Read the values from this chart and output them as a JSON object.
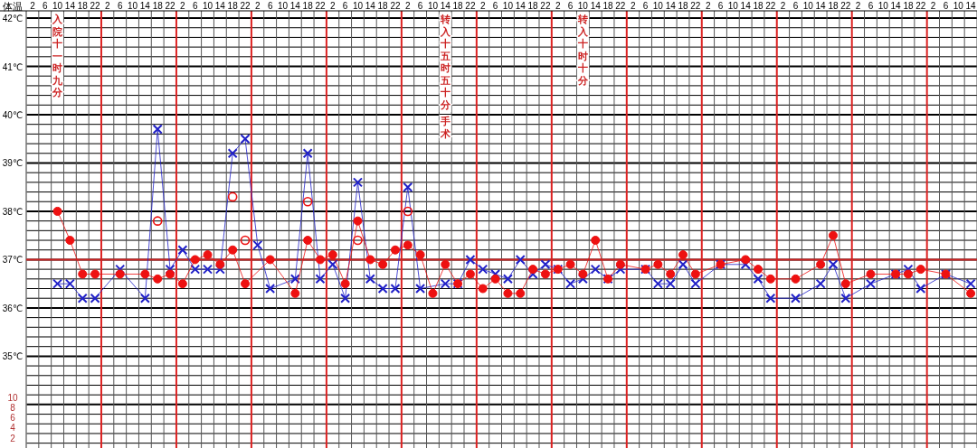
{
  "chart_data": {
    "type": "line",
    "title": "体温",
    "categories": [
      "2",
      "6",
      "10",
      "14",
      "18",
      "22",
      "2",
      "6",
      "10",
      "14",
      "18",
      "22",
      "2",
      "6",
      "10",
      "14",
      "18",
      "22",
      "2",
      "6",
      "10",
      "14",
      "18",
      "22",
      "2",
      "6",
      "10",
      "14",
      "18",
      "22",
      "2",
      "6",
      "10",
      "14",
      "18",
      "22",
      "2",
      "6",
      "10",
      "14",
      "18",
      "22",
      "2",
      "6",
      "10",
      "14",
      "18",
      "22",
      "2",
      "6",
      "10",
      "14",
      "18",
      "22",
      "2",
      "6",
      "10",
      "14",
      "18",
      "22",
      "2",
      "6",
      "10",
      "14",
      "18",
      "22",
      "2",
      "6",
      "10",
      "14",
      "18",
      "22",
      "2",
      "6",
      "10",
      "14"
    ],
    "series": [
      {
        "color": "#2020c8",
        "marker": "cross",
        "values": [
          null,
          null,
          36.5,
          36.5,
          36.2,
          36.2,
          null,
          36.8,
          null,
          36.2,
          39.7,
          36.8,
          37.2,
          36.8,
          36.8,
          36.8,
          39.2,
          39.5,
          37.3,
          36.4,
          null,
          36.6,
          39.2,
          36.6,
          36.9,
          36.2,
          38.6,
          36.6,
          36.4,
          36.4,
          38.5,
          36.4,
          null,
          36.5,
          36.5,
          37.0,
          36.8,
          36.7,
          36.6,
          37.0,
          36.7,
          36.9,
          36.8,
          36.5,
          36.6,
          36.8,
          36.6,
          36.8,
          null,
          36.8,
          36.5,
          36.5,
          36.9,
          36.5,
          null,
          36.9,
          null,
          36.9,
          36.6,
          36.2,
          null,
          36.2,
          null,
          36.5,
          36.9,
          36.2,
          null,
          36.5,
          null,
          36.7,
          36.8,
          36.4,
          null,
          36.7,
          null,
          36.5
        ]
      },
      {
        "color": "#ee1111",
        "marker": "circle",
        "values": [
          null,
          null,
          38.0,
          37.4,
          36.7,
          36.7,
          null,
          36.7,
          null,
          36.7,
          36.6,
          36.7,
          36.5,
          37.0,
          37.1,
          36.9,
          37.2,
          36.5,
          null,
          37.0,
          null,
          36.3,
          37.4,
          37.0,
          37.1,
          36.5,
          37.8,
          37.0,
          36.9,
          37.2,
          37.3,
          37.1,
          36.3,
          36.9,
          36.5,
          36.7,
          36.4,
          36.6,
          36.3,
          36.3,
          36.8,
          36.7,
          36.8,
          36.9,
          36.7,
          37.4,
          36.6,
          36.9,
          null,
          36.8,
          36.9,
          36.7,
          37.1,
          36.7,
          null,
          36.9,
          null,
          37.0,
          36.8,
          36.6,
          null,
          36.6,
          null,
          36.9,
          37.5,
          36.5,
          null,
          36.7,
          null,
          36.7,
          36.7,
          36.8,
          null,
          36.7,
          null,
          36.3
        ]
      },
      {
        "type": "scatter",
        "color": "#ee1111",
        "marker": "circle",
        "values": [
          null,
          null,
          null,
          null,
          null,
          null,
          null,
          null,
          null,
          null,
          37.8,
          null,
          null,
          null,
          null,
          null,
          38.3,
          37.4,
          null,
          null,
          null,
          null,
          38.2,
          null,
          null,
          null,
          37.4,
          null,
          null,
          null,
          38.0,
          null,
          null,
          null,
          null,
          null,
          null,
          null,
          null,
          null,
          null,
          null,
          null,
          null,
          null,
          null,
          null,
          null,
          null,
          null,
          null,
          null,
          null,
          null,
          null,
          null,
          null,
          null,
          null,
          null,
          null,
          null,
          null,
          null,
          null,
          null,
          null,
          null,
          null,
          null,
          null,
          null,
          null,
          null,
          null,
          null
        ]
      }
    ],
    "ylim": [
      33.1,
      42.15
    ],
    "yticks": [
      {
        "value": 35,
        "label": "35℃"
      },
      {
        "value": 36,
        "label": "36℃"
      },
      {
        "value": 37,
        "label": "37℃"
      },
      {
        "value": 38,
        "label": "38℃"
      },
      {
        "value": 39,
        "label": "39℃"
      },
      {
        "value": 40,
        "label": "40℃"
      },
      {
        "value": 41,
        "label": "41℃"
      },
      {
        "value": 42,
        "label": "42℃"
      }
    ],
    "y2lim": [
      0,
      86
    ],
    "y2ticks": [
      2,
      4,
      6,
      8,
      10
    ],
    "ref_lines": [
      {
        "axis": "y",
        "value": 37,
        "color": "#cc2222"
      }
    ],
    "grid": true,
    "annotations": [
      "入院十一时九分",
      "转入十五时五十分",
      "手术",
      "转入十时十分"
    ]
  }
}
